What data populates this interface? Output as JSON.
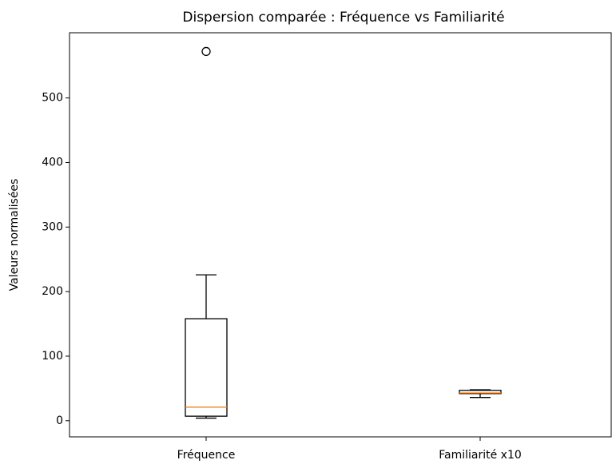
{
  "chart_data": {
    "type": "box",
    "title": "Dispersion comparée : Fréquence vs Familiarité",
    "y_label": "Valeurs normalisées",
    "categories": [
      "Fréquence",
      "Familiarité x10"
    ],
    "boxes": [
      {
        "whislo": 4,
        "q1": 7,
        "med": 21,
        "q3": 158,
        "whishi": 226,
        "fliers": [
          572
        ]
      },
      {
        "whislo": 36,
        "q1": 42,
        "med": 43,
        "q3": 47,
        "whishi": 48,
        "fliers": []
      }
    ],
    "box_color": "#000000",
    "median_color": "#ff7f0e",
    "ylim": [
      -25,
      601
    ],
    "yticks": [
      0,
      100,
      200,
      300,
      400,
      500
    ]
  }
}
